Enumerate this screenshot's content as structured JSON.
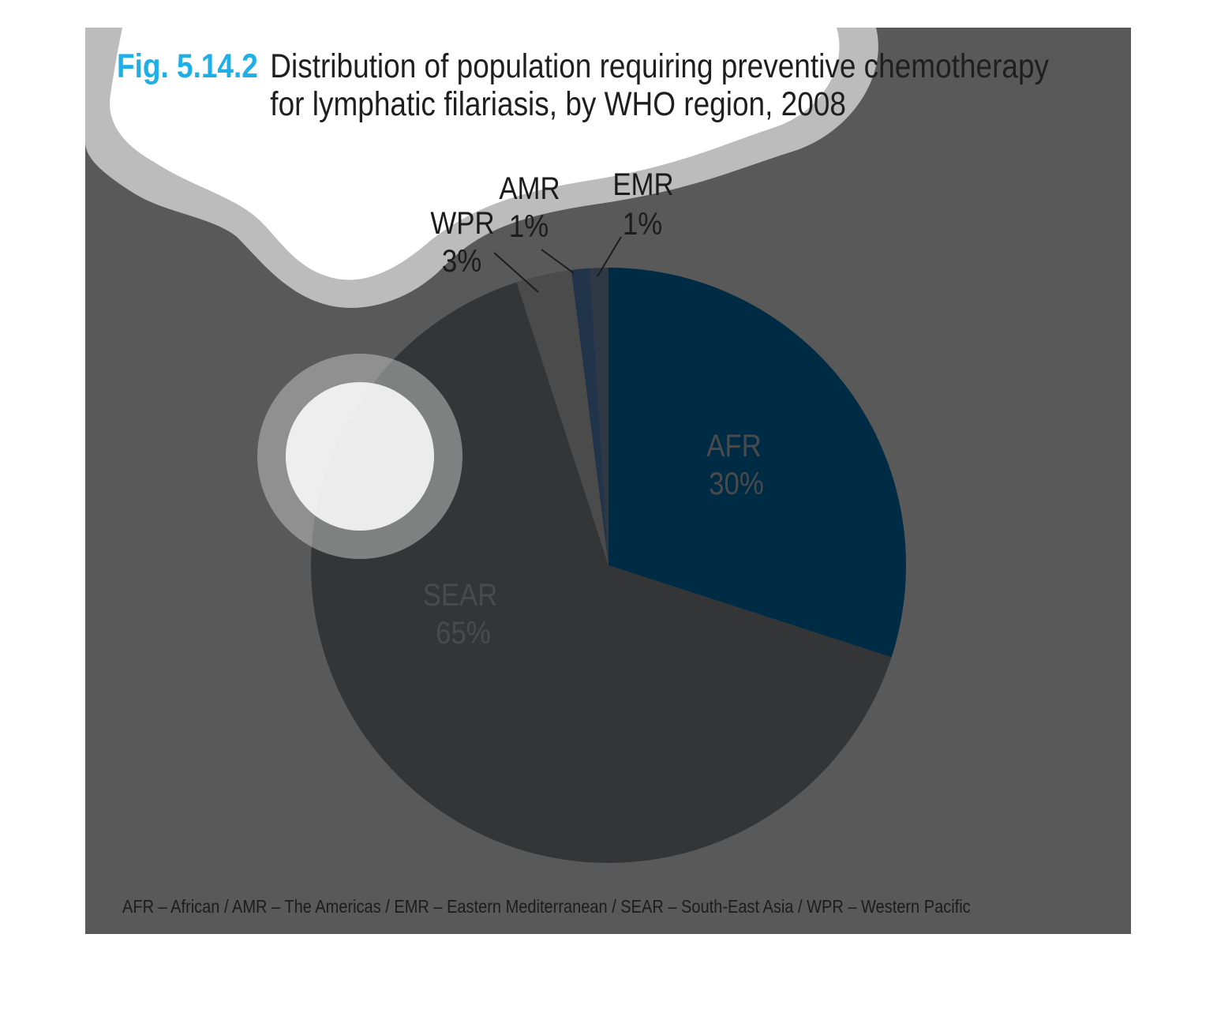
{
  "title": {
    "figure_number": "Fig. 5.14.2",
    "line1": "Distribution of population requiring preventive chemotherapy",
    "line2": "for lymphatic filariasis, by WHO region, 2008"
  },
  "footnote": "AFR – African / AMR – The Americas / EMR – Eastern Mediterranean / SEAR – South-East Asia / WPR – Western Pacific",
  "colors": {
    "panel": "#595959",
    "title_accent": "#1eaee8"
  },
  "chart_data": {
    "type": "pie",
    "title": "Distribution of population requiring preventive chemotherapy for lymphatic filariasis, by WHO region, 2008",
    "start": "12 o'clock",
    "direction": "clockwise",
    "slices": [
      {
        "key": "afr",
        "label": "AFR",
        "value": 30,
        "value_label": "30%",
        "color": "#002b45",
        "label_color": "#4a4a4a"
      },
      {
        "key": "sear",
        "label": "SEAR",
        "value": 65,
        "value_label": "65%",
        "color": "#343537",
        "label_color": "#4a4a4a"
      },
      {
        "key": "wpr",
        "label": "WPR",
        "value": 3,
        "value_label": "3%",
        "color": "#4b4b4b",
        "label_color": "#1c1c1c"
      },
      {
        "key": "amr",
        "label": "AMR",
        "value": 1,
        "value_label": "1%",
        "color": "#223449",
        "label_color": "#1c1c1c"
      },
      {
        "key": "emr",
        "label": "EMR",
        "value": 1,
        "value_label": "1%",
        "color": "#2f3946",
        "label_color": "#1c1c1c"
      }
    ]
  }
}
